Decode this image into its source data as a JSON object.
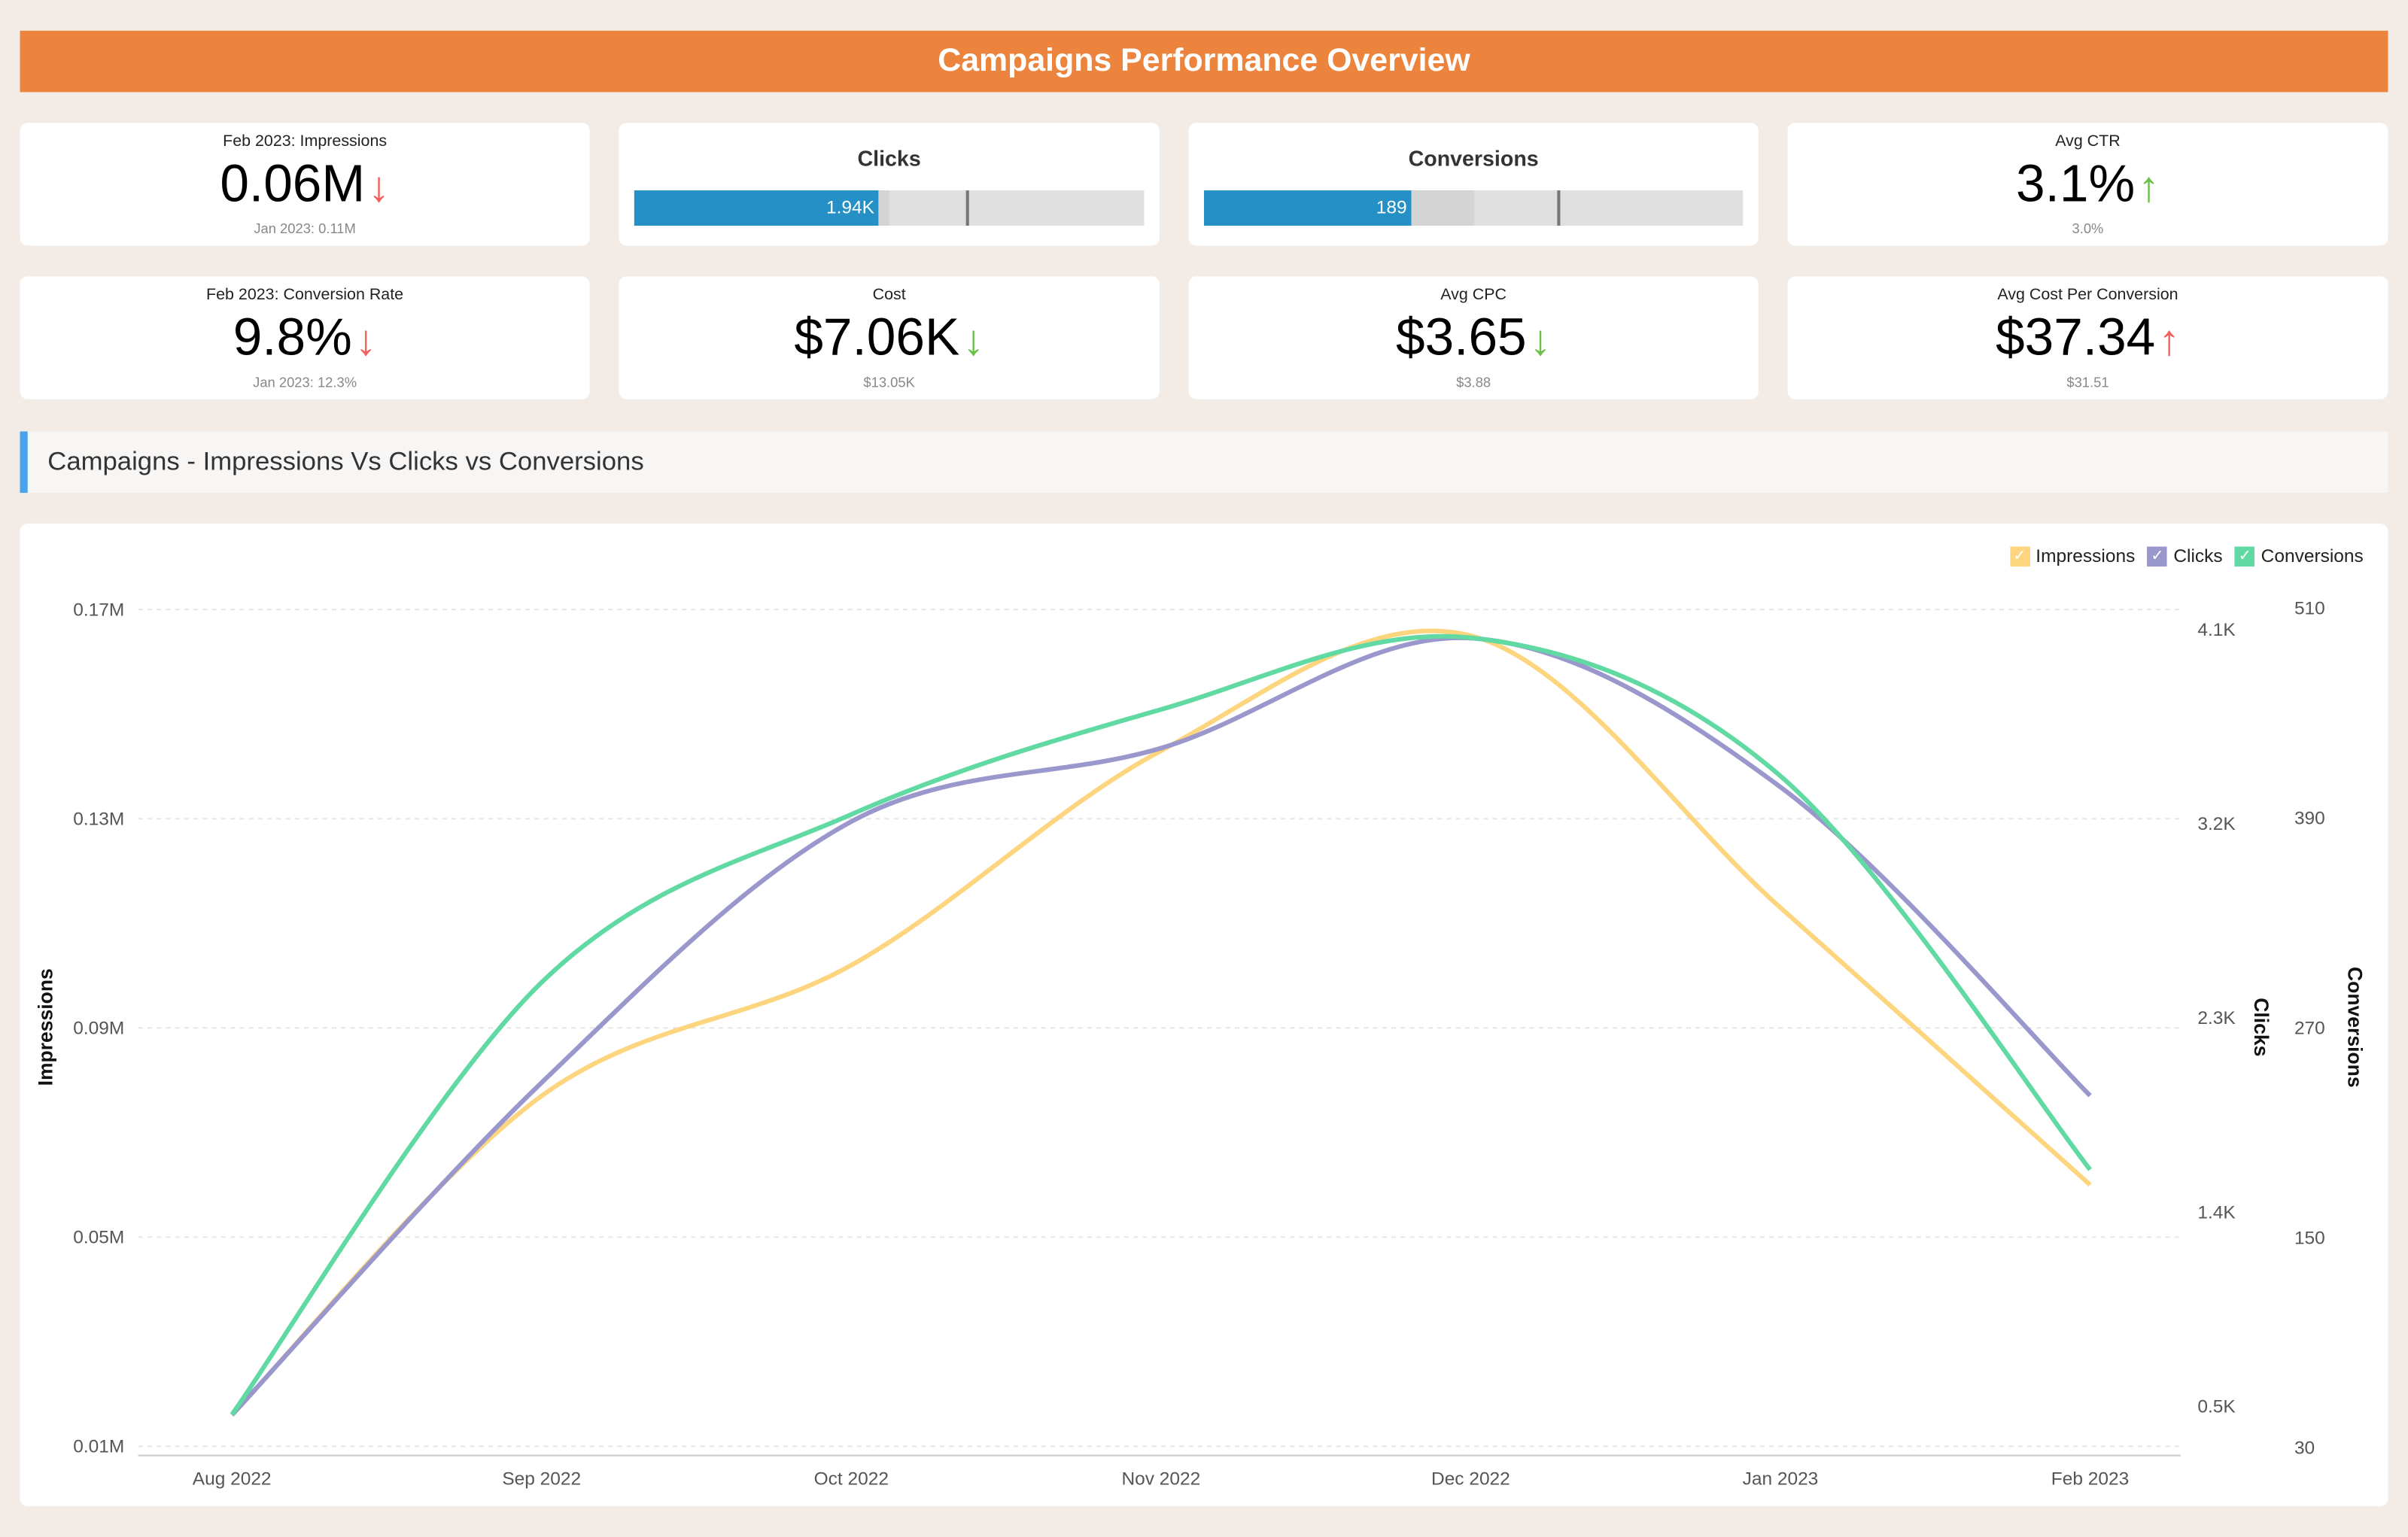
{
  "header": {
    "title": "Campaigns Performance Overview"
  },
  "kpis": [
    {
      "title": "Feb 2023: Impressions",
      "value": "0.06M",
      "trend": "down",
      "trend_color": "#f25f5c",
      "sub": "Jan 2023: 0.11M"
    },
    {
      "title": "Avg CTR",
      "value": "3.1%",
      "trend": "up",
      "trend_color": "#6cc04a",
      "sub": "3.0%"
    },
    {
      "title": "Feb 2023: Conversion Rate",
      "value": "9.8%",
      "trend": "down",
      "trend_color": "#f25f5c",
      "sub": "Jan 2023: 12.3%"
    },
    {
      "title": "Cost",
      "value": "$7.06K",
      "trend": "down",
      "trend_color": "#6cc04a",
      "sub": "$13.05K"
    },
    {
      "title": "Avg CPC",
      "value": "$3.65",
      "trend": "down",
      "trend_color": "#6cc04a",
      "sub": "$3.88"
    },
    {
      "title": "Avg Cost Per Conversion",
      "value": "$37.34",
      "trend": "up",
      "trend_color": "#f25f5c",
      "sub": "$31.51"
    }
  ],
  "bullets": [
    {
      "title": "Clicks",
      "value_label": "1.94K",
      "fill_pct": 48,
      "band_pct": 50,
      "target_pct": 65
    },
    {
      "title": "Conversions",
      "value_label": "189",
      "fill_pct": 38.5,
      "band_pct": 50,
      "target_pct": 65.5
    }
  ],
  "arrows": {
    "up": "↑",
    "down": "↓"
  },
  "section": {
    "title": "Campaigns - Impressions Vs Clicks vs Conversions"
  },
  "chart_data": {
    "type": "line",
    "x": [
      "Aug 2022",
      "Sep 2022",
      "Oct 2022",
      "Nov 2022",
      "Dec 2022",
      "Jan 2023",
      "Feb 2023"
    ],
    "series": [
      {
        "name": "Impressions",
        "axis": "left",
        "color": "#fdd57e",
        "values": [
          0.016,
          0.077,
          0.102,
          0.143,
          0.165,
          0.113,
          0.06
        ]
      },
      {
        "name": "Clicks",
        "axis": "right1",
        "color": "#9a97cc",
        "values": [
          0.46,
          2.0,
          3.21,
          3.55,
          4.06,
          3.37,
          1.94
        ]
      },
      {
        "name": "Conversions",
        "axis": "right2",
        "color": "#61d9a2",
        "values": [
          49,
          296,
          392,
          452,
          493,
          414,
          189
        ]
      }
    ],
    "axes": {
      "left": {
        "label": "Impressions",
        "ticks": [
          "0.01M",
          "0.05M",
          "0.09M",
          "0.13M",
          "0.17M"
        ],
        "range": [
          0.01,
          0.17
        ]
      },
      "right1": {
        "label": "Clicks",
        "ticks": [
          "0.5K",
          "1.4K",
          "2.3K",
          "3.2K",
          "4.1K"
        ],
        "range": [
          0.5,
          4.1
        ]
      },
      "right2": {
        "label": "Conversions",
        "ticks": [
          "30",
          "150",
          "270",
          "390",
          "510"
        ],
        "range": [
          30,
          510
        ]
      }
    },
    "legend_position": "top-right",
    "grid": true
  }
}
